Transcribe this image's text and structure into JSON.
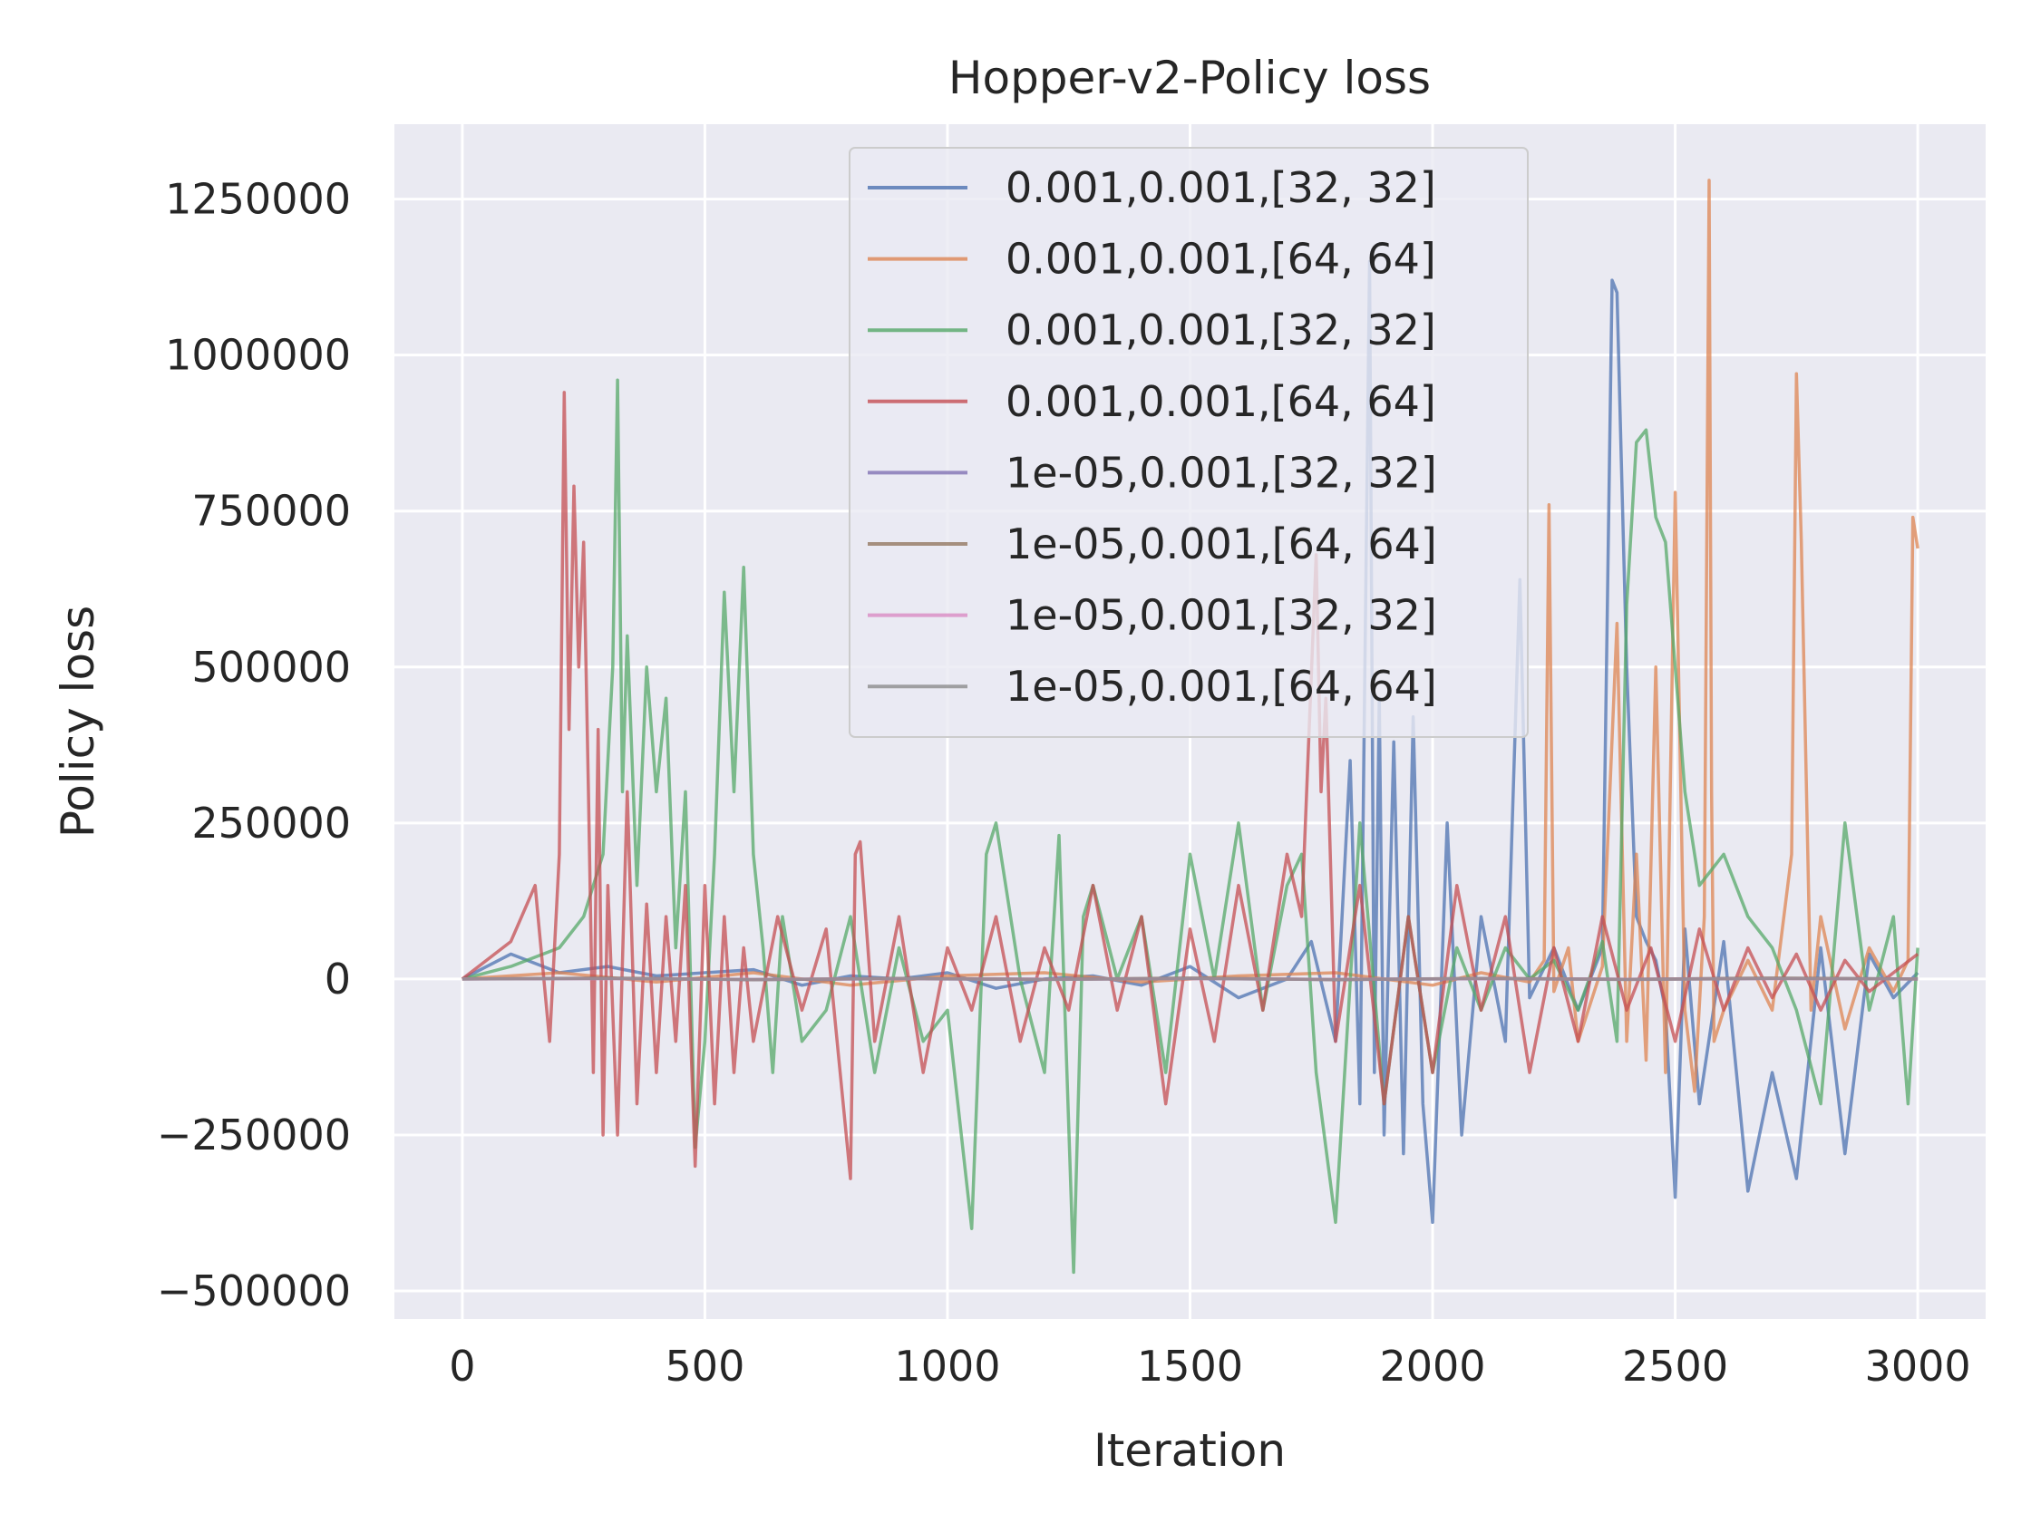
{
  "chart_data": {
    "type": "line",
    "title": "Hopper-v2-Policy loss",
    "xlabel": "Iteration",
    "ylabel": "Policy loss",
    "xlim": [
      -140,
      3140
    ],
    "ylim": [
      -545000,
      1370000
    ],
    "xticks": [
      0,
      500,
      1000,
      1500,
      2000,
      2500,
      3000
    ],
    "yticks": [
      -500000,
      -250000,
      0,
      250000,
      500000,
      750000,
      1000000,
      1250000
    ],
    "xtick_labels": [
      "0",
      "500",
      "1000",
      "1500",
      "2000",
      "2500",
      "3000"
    ],
    "ytick_labels": [
      "−500000",
      "−250000",
      "0",
      "250000",
      "500000",
      "750000",
      "1000000",
      "1250000"
    ],
    "grid": true,
    "background": "#eaeaf2",
    "legend_position": "upper-center",
    "series": [
      {
        "name": "0.001,0.001,[32, 32]",
        "color": "#4c72b0",
        "x": [
          0,
          100,
          200,
          300,
          400,
          500,
          600,
          700,
          800,
          900,
          1000,
          1100,
          1200,
          1300,
          1400,
          1500,
          1600,
          1700,
          1750,
          1800,
          1830,
          1850,
          1870,
          1880,
          1890,
          1900,
          1920,
          1940,
          1960,
          1980,
          2000,
          2030,
          2060,
          2100,
          2150,
          2180,
          2200,
          2250,
          2300,
          2350,
          2370,
          2380,
          2390,
          2400,
          2420,
          2440,
          2460,
          2480,
          2500,
          2520,
          2550,
          2600,
          2650,
          2700,
          2750,
          2800,
          2850,
          2900,
          2950,
          3000
        ],
        "y": [
          0,
          40000,
          10000,
          20000,
          5000,
          10000,
          15000,
          -10000,
          5000,
          0,
          10000,
          -15000,
          0,
          5000,
          -10000,
          20000,
          -30000,
          0,
          60000,
          -100000,
          350000,
          -200000,
          1150000,
          -150000,
          450000,
          -250000,
          380000,
          -280000,
          420000,
          -200000,
          -390000,
          250000,
          -250000,
          100000,
          -100000,
          640000,
          -30000,
          50000,
          -50000,
          50000,
          1120000,
          1100000,
          800000,
          500000,
          100000,
          60000,
          30000,
          -50000,
          -350000,
          80000,
          -200000,
          60000,
          -340000,
          -150000,
          -320000,
          50000,
          -280000,
          40000,
          -30000,
          10000
        ]
      },
      {
        "name": "0.001,0.001,[64, 64]",
        "color": "#dd8452",
        "x": [
          0,
          200,
          400,
          600,
          800,
          1000,
          1200,
          1400,
          1600,
          1800,
          2000,
          2100,
          2200,
          2230,
          2240,
          2250,
          2280,
          2300,
          2350,
          2380,
          2400,
          2420,
          2440,
          2460,
          2480,
          2500,
          2520,
          2540,
          2560,
          2570,
          2575,
          2580,
          2600,
          2650,
          2700,
          2740,
          2750,
          2760,
          2780,
          2800,
          2850,
          2900,
          2950,
          2980,
          2990,
          3000
        ],
        "y": [
          0,
          10000,
          -5000,
          10000,
          -10000,
          5000,
          10000,
          -5000,
          5000,
          10000,
          -10000,
          10000,
          -5000,
          30000,
          760000,
          -20000,
          50000,
          -100000,
          20000,
          570000,
          -100000,
          200000,
          -130000,
          500000,
          -150000,
          780000,
          -50000,
          -180000,
          100000,
          1280000,
          300000,
          -100000,
          -50000,
          30000,
          -50000,
          200000,
          970000,
          700000,
          -50000,
          100000,
          -80000,
          50000,
          -20000,
          30000,
          740000,
          690000
        ]
      },
      {
        "name": "0.001,0.001,[32, 32]",
        "color": "#55a868",
        "x": [
          0,
          100,
          200,
          250,
          290,
          310,
          320,
          330,
          340,
          360,
          380,
          400,
          420,
          440,
          460,
          480,
          500,
          520,
          540,
          560,
          580,
          600,
          620,
          640,
          660,
          700,
          750,
          800,
          850,
          900,
          950,
          1000,
          1050,
          1080,
          1100,
          1150,
          1200,
          1230,
          1260,
          1280,
          1300,
          1350,
          1400,
          1450,
          1500,
          1550,
          1600,
          1650,
          1700,
          1730,
          1760,
          1800,
          1850,
          1900,
          1950,
          2000,
          2050,
          2100,
          2150,
          2200,
          2250,
          2300,
          2350,
          2380,
          2400,
          2420,
          2440,
          2460,
          2480,
          2500,
          2520,
          2550,
          2600,
          2650,
          2700,
          2750,
          2800,
          2850,
          2900,
          2950,
          2980,
          3000
        ],
        "y": [
          0,
          20000,
          50000,
          100000,
          200000,
          500000,
          960000,
          300000,
          550000,
          150000,
          500000,
          300000,
          450000,
          50000,
          300000,
          -270000,
          -100000,
          200000,
          620000,
          300000,
          660000,
          200000,
          50000,
          -150000,
          100000,
          -100000,
          -50000,
          100000,
          -150000,
          50000,
          -100000,
          -50000,
          -400000,
          200000,
          250000,
          0,
          -150000,
          230000,
          -470000,
          100000,
          150000,
          0,
          100000,
          -150000,
          200000,
          0,
          250000,
          -50000,
          150000,
          200000,
          -150000,
          -390000,
          250000,
          -200000,
          100000,
          -150000,
          50000,
          -50000,
          50000,
          0,
          30000,
          -50000,
          60000,
          -100000,
          600000,
          860000,
          880000,
          740000,
          700000,
          500000,
          300000,
          150000,
          200000,
          100000,
          50000,
          -50000,
          -200000,
          250000,
          -50000,
          100000,
          -200000,
          50000
        ]
      },
      {
        "name": "0.001,0.001,[64, 64]",
        "color": "#c44e52",
        "x": [
          0,
          100,
          150,
          180,
          200,
          210,
          220,
          230,
          240,
          250,
          260,
          270,
          280,
          290,
          300,
          320,
          340,
          360,
          380,
          400,
          420,
          440,
          460,
          480,
          500,
          520,
          540,
          560,
          580,
          600,
          650,
          700,
          750,
          800,
          810,
          820,
          850,
          900,
          950,
          1000,
          1050,
          1100,
          1150,
          1200,
          1250,
          1300,
          1350,
          1400,
          1450,
          1500,
          1550,
          1600,
          1650,
          1700,
          1730,
          1760,
          1770,
          1780,
          1800,
          1850,
          1900,
          1950,
          2000,
          2050,
          2100,
          2150,
          2200,
          2250,
          2300,
          2350,
          2400,
          2450,
          2500,
          2550,
          2600,
          2650,
          2700,
          2750,
          2800,
          2850,
          2900,
          2950,
          3000
        ],
        "y": [
          0,
          60000,
          150000,
          -100000,
          200000,
          940000,
          400000,
          790000,
          500000,
          700000,
          300000,
          -150000,
          400000,
          -250000,
          150000,
          -250000,
          300000,
          -200000,
          120000,
          -150000,
          100000,
          -100000,
          150000,
          -300000,
          150000,
          -200000,
          100000,
          -150000,
          50000,
          -100000,
          100000,
          -50000,
          80000,
          -320000,
          200000,
          220000,
          -100000,
          100000,
          -150000,
          50000,
          -50000,
          100000,
          -100000,
          50000,
          -50000,
          150000,
          -50000,
          100000,
          -200000,
          80000,
          -100000,
          150000,
          -50000,
          200000,
          100000,
          680000,
          300000,
          450000,
          -100000,
          150000,
          -200000,
          100000,
          -150000,
          150000,
          -50000,
          100000,
          -150000,
          50000,
          -100000,
          100000,
          -50000,
          50000,
          -100000,
          80000,
          -50000,
          50000,
          -30000,
          40000,
          -50000,
          30000,
          -20000,
          10000,
          40000
        ]
      },
      {
        "name": "1e-05,0.001,[32, 32]",
        "color": "#8172b3",
        "x": [
          0,
          300,
          600,
          900,
          1200,
          1500,
          1800,
          2100,
          2400,
          2700,
          3000
        ],
        "y": [
          0,
          1000,
          -1000,
          500,
          -500,
          1000,
          -1000,
          500,
          -500,
          1000,
          0
        ]
      },
      {
        "name": "1e-05,0.001,[64, 64]",
        "color": "#937860",
        "x": [
          0,
          300,
          600,
          900,
          1200,
          1500,
          1800,
          2100,
          2400,
          2700,
          3000
        ],
        "y": [
          0,
          1500,
          -1000,
          1000,
          -500,
          1500,
          -1000,
          1000,
          -500,
          1500,
          0
        ]
      },
      {
        "name": "1e-05,0.001,[32, 32]",
        "color": "#da8bc3",
        "x": [
          0,
          300,
          600,
          900,
          1200,
          1500,
          1800,
          2100,
          2400,
          2700,
          3000
        ],
        "y": [
          0,
          500,
          -500,
          500,
          -500,
          500,
          -500,
          500,
          -500,
          500,
          0
        ]
      },
      {
        "name": "1e-05,0.001,[64, 64]",
        "color": "#8c8c8c",
        "x": [
          0,
          300,
          600,
          900,
          1200,
          1500,
          1800,
          2100,
          2400,
          2700,
          3000
        ],
        "y": [
          0,
          800,
          -800,
          800,
          -800,
          800,
          -800,
          800,
          -800,
          800,
          0
        ]
      }
    ]
  }
}
